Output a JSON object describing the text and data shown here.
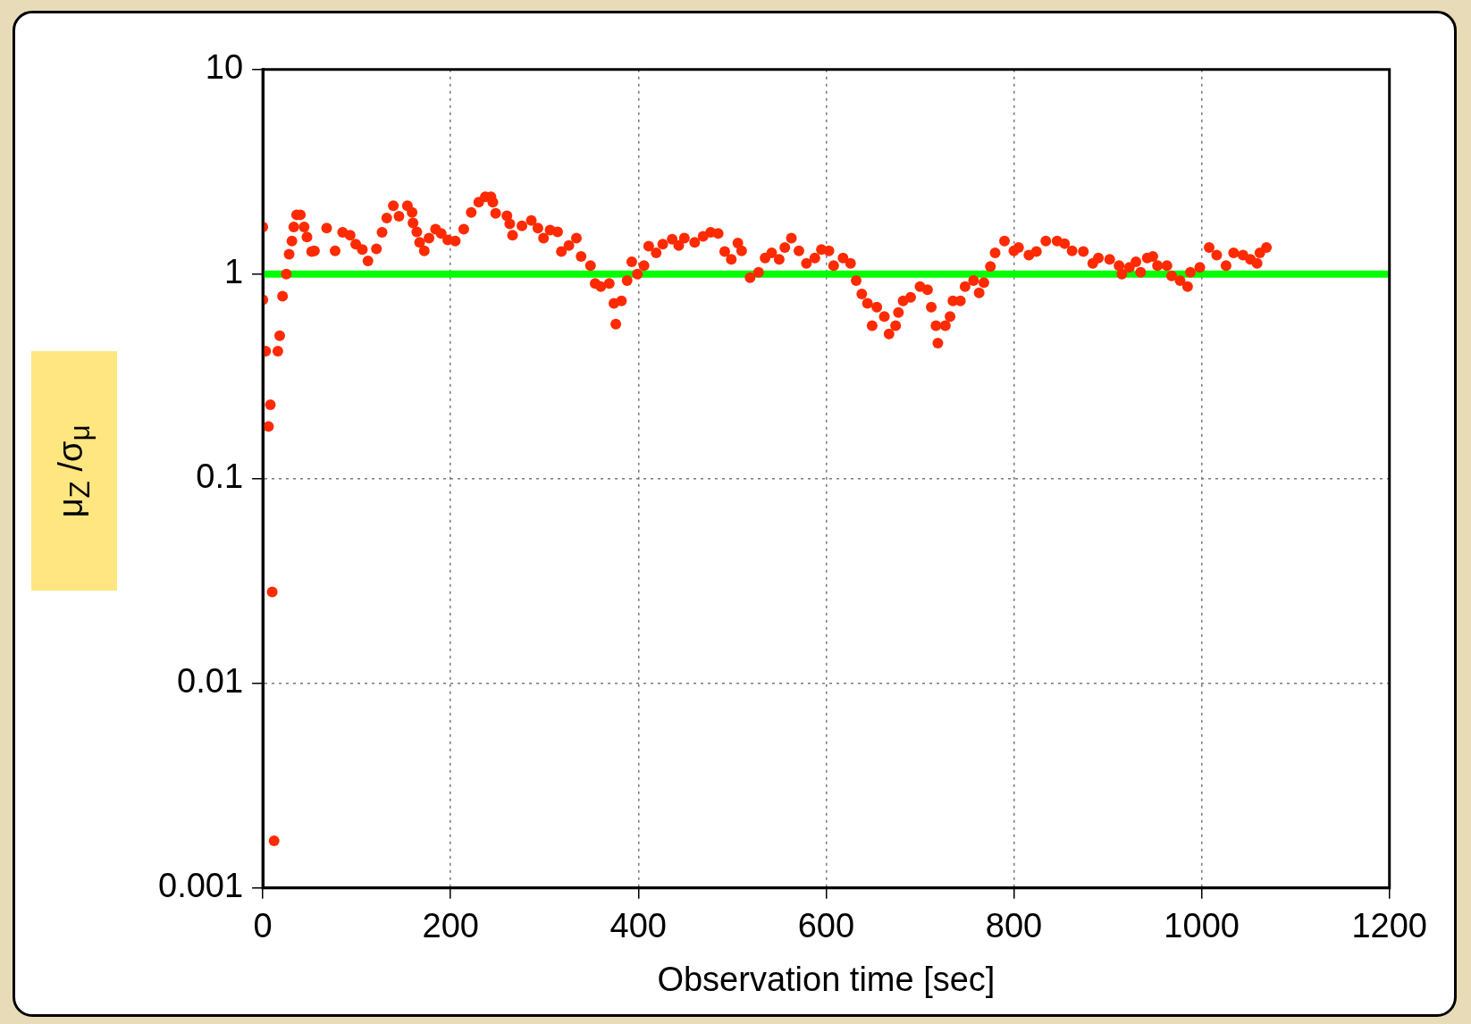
{
  "chart_data": {
    "type": "scatter",
    "xlabel": "Observation time [sec]",
    "ylabel": "μ$_{Z}$ /σ$_{μ}$",
    "xlim": [
      0,
      1200
    ],
    "xticks": [
      0,
      200,
      400,
      600,
      800,
      1000,
      1200
    ],
    "ylim": [
      0.001,
      10
    ],
    "yticks": [
      0.001,
      0.01,
      0.1,
      1,
      10
    ],
    "log": "y",
    "grid": true,
    "marker": "circle",
    "ref_lines": [
      {
        "axis": "y",
        "value": 1,
        "color": "#00ff00"
      }
    ],
    "series": [
      {
        "color": "#ff2a00",
        "x": [
          0,
          0,
          3,
          6,
          8,
          10,
          12,
          16,
          18,
          21,
          25,
          28,
          31,
          33,
          36,
          40,
          44,
          47,
          52,
          55,
          68,
          77,
          85,
          93,
          99,
          106,
          112,
          121,
          127,
          132,
          139,
          145,
          154,
          159,
          160,
          164,
          167,
          172,
          177,
          184,
          190,
          197,
          205,
          214,
          222,
          230,
          237,
          243,
          245,
          248,
          260,
          263,
          266,
          276,
          286,
          293,
          299,
          306,
          314,
          318,
          326,
          334,
          339,
          349,
          354,
          360,
          369,
          374,
          376,
          382,
          388,
          393,
          399,
          406,
          411,
          419,
          426,
          436,
          443,
          449,
          460,
          469,
          477,
          485,
          492,
          499,
          506,
          510,
          519,
          528,
          535,
          542,
          550,
          556,
          563,
          571,
          579,
          588,
          595,
          603,
          608,
          618,
          626,
          632,
          638,
          644,
          649,
          654,
          662,
          667,
          674,
          677,
          682,
          690,
          700,
          708,
          712,
          717,
          719,
          727,
          732,
          735,
          743,
          748,
          757,
          763,
          768,
          775,
          780,
          790,
          800,
          805,
          816,
          824,
          834,
          846,
          854,
          862,
          874,
          884,
          890,
          902,
          912,
          915,
          923,
          930,
          935,
          942,
          948,
          953,
          963,
          968,
          977,
          985,
          988,
          998,
          1008,
          1016,
          1026,
          1034,
          1044,
          1052,
          1059,
          1062,
          1069
        ],
        "values": [
          1.7,
          0.75,
          0.42,
          0.18,
          0.23,
          0.028,
          0.0017,
          0.42,
          0.5,
          0.78,
          1.0,
          1.25,
          1.45,
          1.7,
          1.95,
          1.95,
          1.7,
          1.52,
          1.29,
          1.3,
          1.68,
          1.3,
          1.6,
          1.55,
          1.4,
          1.32,
          1.16,
          1.33,
          1.6,
          1.88,
          2.16,
          1.92,
          2.16,
          2.0,
          1.78,
          1.61,
          1.43,
          1.3,
          1.5,
          1.66,
          1.58,
          1.47,
          1.45,
          1.66,
          2.0,
          2.25,
          2.39,
          2.39,
          2.25,
          1.98,
          1.93,
          1.76,
          1.55,
          1.72,
          1.83,
          1.68,
          1.5,
          1.64,
          1.61,
          1.29,
          1.38,
          1.5,
          1.22,
          1.1,
          0.9,
          0.87,
          0.9,
          0.72,
          0.57,
          0.74,
          0.93,
          1.15,
          1.0,
          1.1,
          1.37,
          1.27,
          1.4,
          1.48,
          1.38,
          1.5,
          1.43,
          1.53,
          1.6,
          1.58,
          1.29,
          1.18,
          1.42,
          1.3,
          0.96,
          1.02,
          1.2,
          1.27,
          1.18,
          1.35,
          1.5,
          1.3,
          1.13,
          1.2,
          1.32,
          1.3,
          1.1,
          1.2,
          1.13,
          0.93,
          0.8,
          0.72,
          0.56,
          0.69,
          0.62,
          0.51,
          0.56,
          0.65,
          0.74,
          0.77,
          0.87,
          0.84,
          0.69,
          0.56,
          0.46,
          0.56,
          0.62,
          0.74,
          0.74,
          0.87,
          0.93,
          0.81,
          0.91,
          1.09,
          1.27,
          1.45,
          1.3,
          1.35,
          1.24,
          1.29,
          1.45,
          1.45,
          1.41,
          1.3,
          1.29,
          1.13,
          1.2,
          1.18,
          1.1,
          1.0,
          1.08,
          1.15,
          1.02,
          1.2,
          1.22,
          1.1,
          1.1,
          0.98,
          0.93,
          0.87,
          1.02,
          1.08,
          1.35,
          1.24,
          1.1,
          1.27,
          1.24,
          1.18,
          1.13,
          1.27,
          1.35
        ]
      }
    ]
  }
}
